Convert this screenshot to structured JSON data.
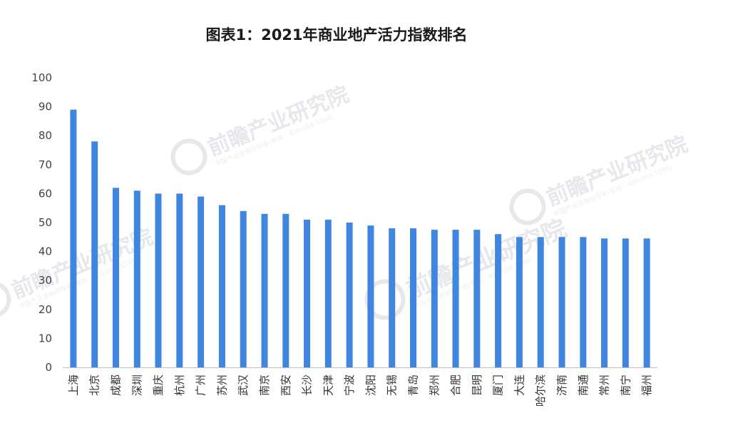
{
  "chart_data": {
    "type": "bar",
    "title": "图表1：2021年商业地产活力指数排名",
    "xlabel": "",
    "ylabel": "",
    "ylim": [
      0,
      100
    ],
    "yticks": [
      0,
      10,
      20,
      30,
      40,
      50,
      60,
      70,
      80,
      90,
      100
    ],
    "grid": false,
    "legend": "none",
    "bar_color": "#3e86e0",
    "categories": [
      "上海",
      "北京",
      "成都",
      "深圳",
      "重庆",
      "杭州",
      "广州",
      "苏州",
      "武汉",
      "南京",
      "西安",
      "长沙",
      "天津",
      "宁波",
      "沈阳",
      "无锡",
      "青岛",
      "郑州",
      "合肥",
      "昆明",
      "厦门",
      "大连",
      "哈尔滨",
      "济南",
      "南通",
      "常州",
      "南宁",
      "福州"
    ],
    "values": [
      89,
      78,
      62,
      61,
      60,
      60,
      59,
      56,
      54,
      53,
      53,
      51,
      51,
      50,
      49,
      48,
      48,
      47.5,
      47.5,
      47.5,
      46,
      45,
      45,
      45,
      45,
      44.5,
      44.5,
      44.5
    ]
  },
  "watermark": {
    "text": "前瞻产业研究院",
    "sub": "中国产业咨询领导者",
    "phone": "(电话：400-068-5599)",
    "color": "#e6e8ec"
  }
}
